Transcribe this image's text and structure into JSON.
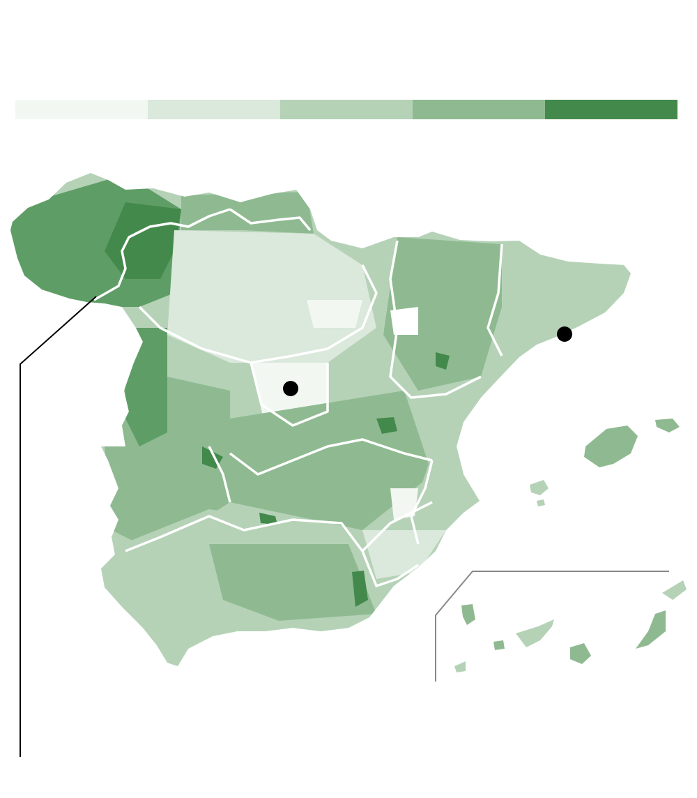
{
  "legend": {
    "classes": [
      {
        "color": "#f2f7f2"
      },
      {
        "color": "#dbe8dc"
      },
      {
        "color": "#b5d2b7"
      },
      {
        "color": "#8fba91"
      },
      {
        "color": "#43894b"
      }
    ]
  },
  "map": {
    "region": "Spain",
    "fill_scale": [
      "#f2f7f2",
      "#dbe8dc",
      "#b5d2b7",
      "#8fba91",
      "#43894b"
    ],
    "boundary_color": "#ffffff",
    "marker_color": "#000000",
    "markers": [
      {
        "name": "madrid-marker"
      },
      {
        "name": "barcelona-marker"
      }
    ],
    "insets": [
      {
        "name": "canary-islands-inset"
      }
    ]
  }
}
